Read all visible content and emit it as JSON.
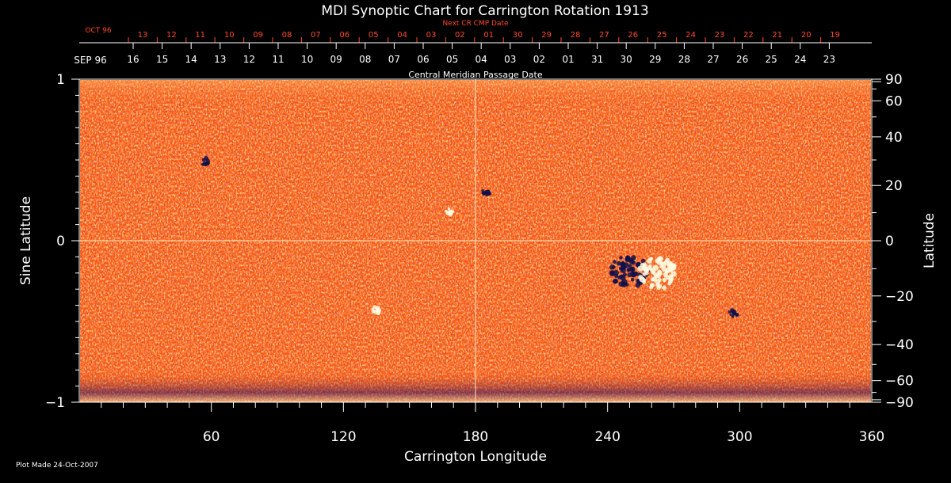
{
  "chart_data": {
    "type": "heatmap",
    "title": "MDI Synoptic Chart for Carrington Rotation 1913",
    "xlabel": "Carrington Longitude",
    "ylabel_left": "Sine Latitude",
    "ylabel_right": "Latitude",
    "xlim": [
      0,
      360
    ],
    "ylim_sine": [
      -1,
      1
    ],
    "x_ticks": [
      60,
      120,
      180,
      240,
      300,
      360
    ],
    "x_tick_labels": [
      "60",
      "120",
      "180",
      "240",
      "300",
      "360"
    ],
    "left_ticks": [
      1,
      0,
      -1
    ],
    "left_tick_labels": [
      "1",
      "0",
      "−1"
    ],
    "right_ticks_deg": [
      90,
      60,
      40,
      20,
      0,
      -20,
      -40,
      -60,
      -90
    ],
    "right_tick_labels": [
      "90",
      "60",
      "40",
      "20",
      "0",
      "−20",
      "−40",
      "−60",
      "−90"
    ],
    "crosshair": {
      "longitude": 180,
      "sine_latitude": 0
    },
    "cmp_axis_label": "Central Meridian Passage Date",
    "cmp_month_label": "SEP 96",
    "cmp_dates": [
      "16",
      "15",
      "14",
      "13",
      "12",
      "11",
      "10",
      "09",
      "08",
      "07",
      "06",
      "05",
      "04",
      "03",
      "02",
      "01",
      "31",
      "30",
      "29",
      "28",
      "27",
      "26",
      "25",
      "24",
      "23"
    ],
    "next_cr_label": "Next CR CMP Date",
    "next_cr_month_label": "OCT 96",
    "next_cr_dates": [
      "13",
      "12",
      "11",
      "10",
      "09",
      "08",
      "07",
      "06",
      "05",
      "04",
      "03",
      "02",
      "01",
      "30",
      "29",
      "28",
      "27",
      "26",
      "25",
      "24",
      "23",
      "22",
      "21",
      "20",
      "19"
    ],
    "colors": {
      "background": "#000000",
      "field_base": "#ff5a10",
      "positive": "#ffffe0",
      "negative": "#000050",
      "next_cr_text": "#ff4a2a"
    },
    "features": [
      {
        "polarity": "negative",
        "longitude": 250,
        "sine_latitude": -0.19
      },
      {
        "polarity": "positive",
        "longitude": 263,
        "sine_latitude": -0.2
      },
      {
        "polarity": "negative",
        "longitude": 185,
        "sine_latitude": 0.3
      },
      {
        "polarity": "negative",
        "longitude": 57,
        "sine_latitude": 0.49
      },
      {
        "polarity": "positive",
        "longitude": 168,
        "sine_latitude": 0.18
      },
      {
        "polarity": "negative",
        "longitude": 297,
        "sine_latitude": -0.45
      },
      {
        "polarity": "positive",
        "longitude": 135,
        "sine_latitude": -0.43
      }
    ]
  },
  "footer": {
    "plot_made": "Plot Made 24-Oct-2007"
  }
}
